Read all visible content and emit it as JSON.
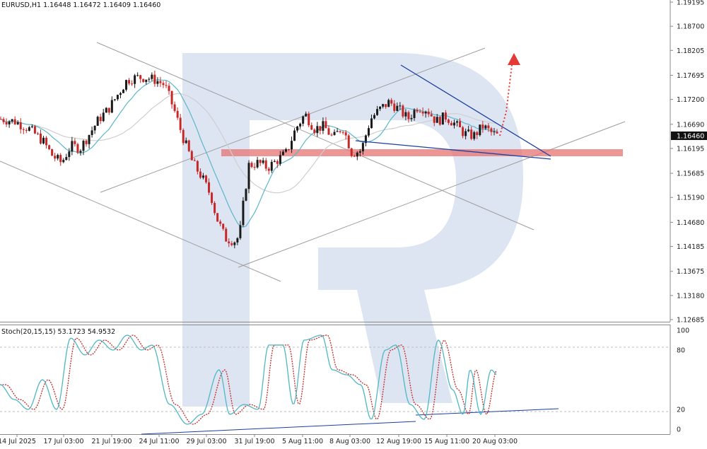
{
  "header": {
    "main": "EURUSD,H1  1.16448 1.16472 1.16409 1.16460",
    "stoch": "Stoch(20,15,15) 53.1723 54.9532"
  },
  "current_price": "1.16460",
  "colors": {
    "bull": "#1a1a1a",
    "bear": "#c62828",
    "ma_fast": "#5bb7c9",
    "ma_slow": "#cfcfcf",
    "channel": "#9e9e9e",
    "wedge": "#1a3fa0",
    "support": "#e57373",
    "arrow": "#e53935",
    "stoch_k": "#4fb7c2",
    "stoch_d": "#c62828",
    "watermark": "#dde5f3"
  },
  "chart_data": [
    {
      "type": "line",
      "title": "EURUSD,H1",
      "ohlc_last": {
        "open": 1.16448,
        "high": 1.16472,
        "low": 1.16409,
        "close": 1.1646
      },
      "y_ticks": [
        "1.19195",
        "1.18700",
        "1.18205",
        "1.17695",
        "1.17200",
        "1.16690",
        "1.16195",
        "1.15685",
        "1.15190",
        "1.14680",
        "1.14185",
        "1.13675",
        "1.13180",
        "1.12685"
      ],
      "ylim": [
        1.12685,
        1.19195
      ],
      "x_ticks": [
        "14 Jul 2025",
        "17 Jul 03:00",
        "21 Jul 19:00",
        "24 Jul 11:00",
        "29 Jul 03:00",
        "31 Jul 19:00",
        "5 Aug 11:00",
        "8 Aug 03:00",
        "12 Aug 19:00",
        "15 Aug 11:00",
        "20 Aug 03:00"
      ],
      "price_path": [
        [
          0,
          1.168
        ],
        [
          3,
          1.1675
        ],
        [
          6,
          1.166
        ],
        [
          9,
          1.1635
        ],
        [
          11,
          1.1605
        ],
        [
          13,
          1.159
        ],
        [
          15,
          1.1625
        ],
        [
          17,
          1.162
        ],
        [
          19,
          1.165
        ],
        [
          21,
          1.168
        ],
        [
          23,
          1.17
        ],
        [
          25,
          1.173
        ],
        [
          27,
          1.176
        ],
        [
          29,
          1.1765
        ],
        [
          31,
          1.1765
        ],
        [
          33,
          1.176
        ],
        [
          35,
          1.175
        ],
        [
          37,
          1.17
        ],
        [
          39,
          1.164
        ],
        [
          41,
          1.159
        ],
        [
          43,
          1.156
        ],
        [
          45,
          1.152
        ],
        [
          46,
          1.148
        ],
        [
          48,
          1.1435
        ],
        [
          50,
          1.143
        ],
        [
          51,
          1.144
        ],
        [
          52,
          1.152
        ],
        [
          53,
          1.1585
        ],
        [
          55,
          1.159
        ],
        [
          57,
          1.158
        ],
        [
          59,
          1.1595
        ],
        [
          61,
          1.161
        ],
        [
          63,
          1.166
        ],
        [
          65,
          1.169
        ],
        [
          67,
          1.166
        ],
        [
          69,
          1.1665
        ],
        [
          71,
          1.164
        ],
        [
          73,
          1.1665
        ],
        [
          75,
          1.161
        ],
        [
          77,
          1.1615
        ],
        [
          79,
          1.168
        ],
        [
          81,
          1.17
        ],
        [
          83,
          1.1715
        ],
        [
          85,
          1.17
        ],
        [
          87,
          1.168
        ],
        [
          89,
          1.1705
        ],
        [
          91,
          1.17
        ],
        [
          93,
          1.1675
        ],
        [
          95,
          1.1685
        ],
        [
          97,
          1.167
        ],
        [
          99,
          1.165
        ],
        [
          101,
          1.1645
        ],
        [
          103,
          1.1665
        ],
        [
          105,
          1.165
        ],
        [
          106,
          1.1646
        ]
      ],
      "series": [
        {
          "name": "",
          "kind": "moving-average-fast"
        },
        {
          "name": "",
          "kind": "moving-average-slow"
        }
      ],
      "annotations": {
        "support_zone": [
          1.1615,
          1.1626
        ],
        "wedge_upper": [
          [
            0.0,
            1.1765
          ],
          [
            1.0,
            1.162
          ]
        ],
        "wedge_lower": [
          [
            0.0,
            1.164
          ],
          [
            1.0,
            1.1605
          ]
        ],
        "projection_arrow_target": 1.1815
      }
    },
    {
      "type": "line",
      "title": "Stoch(20,15,15)",
      "values_last": {
        "k": 53.1723,
        "d": 54.9532
      },
      "ylim": [
        0,
        100
      ],
      "y_ticks": [
        "100",
        "80",
        "20",
        "0"
      ],
      "levels": [
        80,
        20
      ]
    }
  ]
}
